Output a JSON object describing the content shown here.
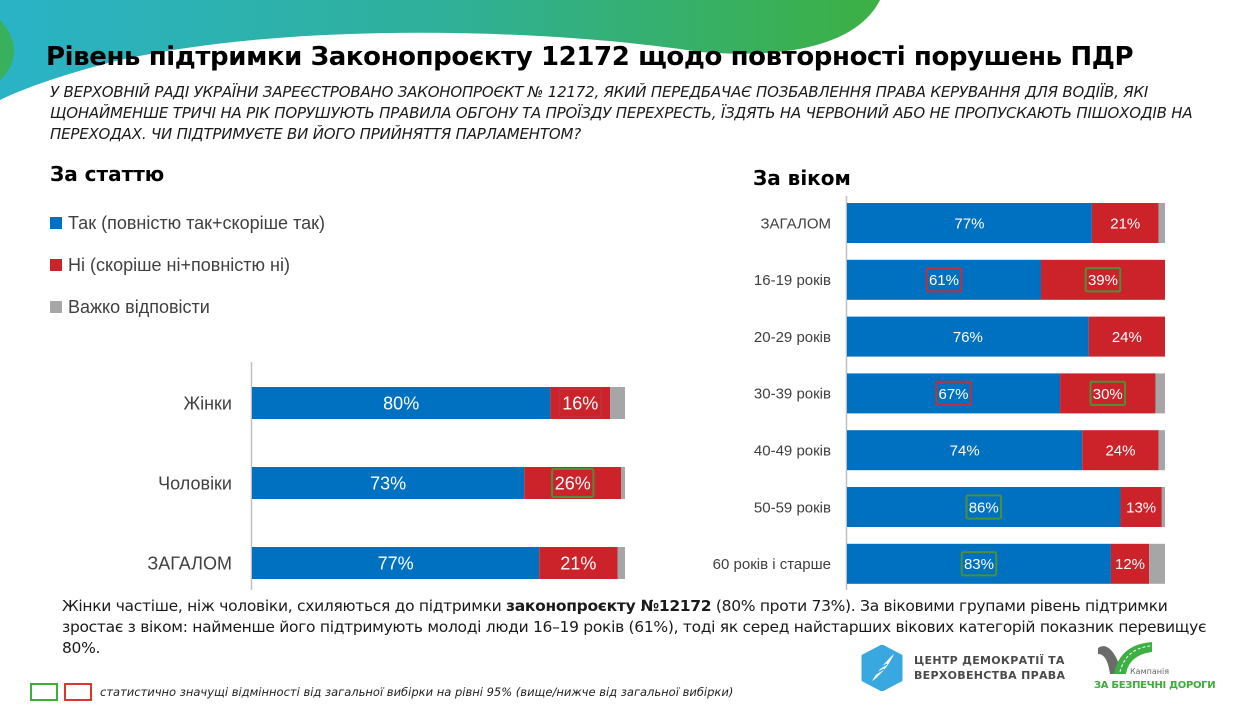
{
  "header": {
    "title": "Рівень підтримки Законопроєкту 12172 щодо повторності порушень ПДР",
    "question": "У ВЕРХОВНІЙ РАДІ УКРАЇНИ ЗАРЕЄСТРОВАНО ЗАКОНОПРОЄКТ № 12172, ЯКИЙ ПЕРЕДБАЧАЄ ПОЗБАВЛЕННЯ ПРАВА КЕРУВАННЯ ДЛЯ ВОДІЇВ, ЯКІ ЩОНАЙМЕНШЕ ТРИЧІ НА РІК ПОРУШУЮТЬ ПРАВИЛА ОБГОНУ ТА ПРОЇЗДУ ПЕРЕХРЕСТЬ, ЇЗДЯТЬ НА ЧЕРВОНИЙ АБО НЕ ПРОПУСКАЮТЬ ПІШОХОДІВ НА ПЕРЕХОДАХ. ЧИ ПІДТРИМУЄТЕ ВИ ЙОГО ПРИЙНЯТТЯ ПАРЛАМЕНТОМ?"
  },
  "colors": {
    "yes": "#0070c0",
    "no": "#cc2229",
    "dk": "#a6a6a6",
    "sig_higher": "#4e8f3a",
    "sig_lower": "#c0303a",
    "wave_from": "#2ab0c8",
    "wave_to": "#3cb043"
  },
  "legend": {
    "items": [
      {
        "key": "yes",
        "label": "Так (повністю так+скоріше так)"
      },
      {
        "key": "no",
        "label": "Ні (скоріше ні+повністю ні)"
      },
      {
        "key": "dk",
        "label": "Важко відповісти"
      }
    ]
  },
  "chart_data": [
    {
      "type": "bar",
      "orientation": "horizontal-stacked-100",
      "title": "За статтю",
      "categories": [
        "Жінки",
        "Чоловіки",
        "ЗАГАЛОМ"
      ],
      "series": [
        {
          "name": "Так (повністю так+скоріше так)",
          "values": [
            80,
            73,
            77
          ]
        },
        {
          "name": "Ні (скоріше ні+повністю ні)",
          "values": [
            16,
            26,
            21
          ]
        },
        {
          "name": "Важко відповісти",
          "values": [
            4,
            1,
            2
          ]
        }
      ],
      "labels": [
        [
          "80%",
          "16%"
        ],
        [
          "73%",
          "26%"
        ],
        [
          "77%",
          "21%"
        ]
      ],
      "significance": [
        [
          null,
          "lower"
        ],
        [
          null,
          "higher"
        ],
        [
          null,
          null
        ]
      ],
      "xlim": [
        0,
        100
      ]
    },
    {
      "type": "bar",
      "orientation": "horizontal-stacked-100",
      "title": "За віком",
      "categories": [
        "ЗАГАЛОМ",
        "16-19 років",
        "20-29 років",
        "30-39 років",
        "40-49 років",
        "50-59 років",
        "60 років і старше"
      ],
      "series": [
        {
          "name": "Так (повністю так+скоріше так)",
          "values": [
            77,
            61,
            76,
            67,
            74,
            86,
            83
          ]
        },
        {
          "name": "Ні (скоріше ні+повністю ні)",
          "values": [
            21,
            39,
            24,
            30,
            24,
            13,
            12
          ]
        },
        {
          "name": "Важко відповісти",
          "values": [
            2,
            0,
            0,
            3,
            2,
            1,
            5
          ]
        }
      ],
      "labels": [
        [
          "77%",
          "21%"
        ],
        [
          "61%",
          "39%"
        ],
        [
          "76%",
          "24%"
        ],
        [
          "67%",
          "30%"
        ],
        [
          "74%",
          "24%"
        ],
        [
          "86%",
          "13%"
        ],
        [
          "83%",
          "12%"
        ]
      ],
      "significance": [
        [
          null,
          null
        ],
        [
          "lower",
          "higher"
        ],
        [
          null,
          null
        ],
        [
          "lower",
          "higher"
        ],
        [
          null,
          null
        ],
        [
          "higher",
          null
        ],
        [
          "higher",
          null
        ]
      ],
      "xlim": [
        0,
        100
      ]
    }
  ],
  "summary": {
    "part1": "Жінки частіше, ніж чоловіки, схиляються до підтримки ",
    "bold": "законопроєкту №12172",
    "part2": " (80% проти 73%). За віковими групами рівень підтримки зростає з віком: найменше його підтримують молоді люди 16–19 років (61%), тоді як серед найстарших вікових категорій показник перевищує 80%."
  },
  "significance_note": "статистично значущі відмінності від загальної вибірки на рівні 95% (вище/нижче від загальної вибірки)",
  "logos": {
    "center": {
      "line1": "ЦЕНТР ДЕМОКРАТІЇ ТА",
      "line2": "ВЕРХОВЕНСТВА ПРАВА",
      "icon": "feather-hexagon-icon"
    },
    "campaign": {
      "small": "Кампанія",
      "name": "ЗА БЕЗПЕЧНІ ДОРОГИ",
      "icon": "road-curve-icon"
    }
  }
}
